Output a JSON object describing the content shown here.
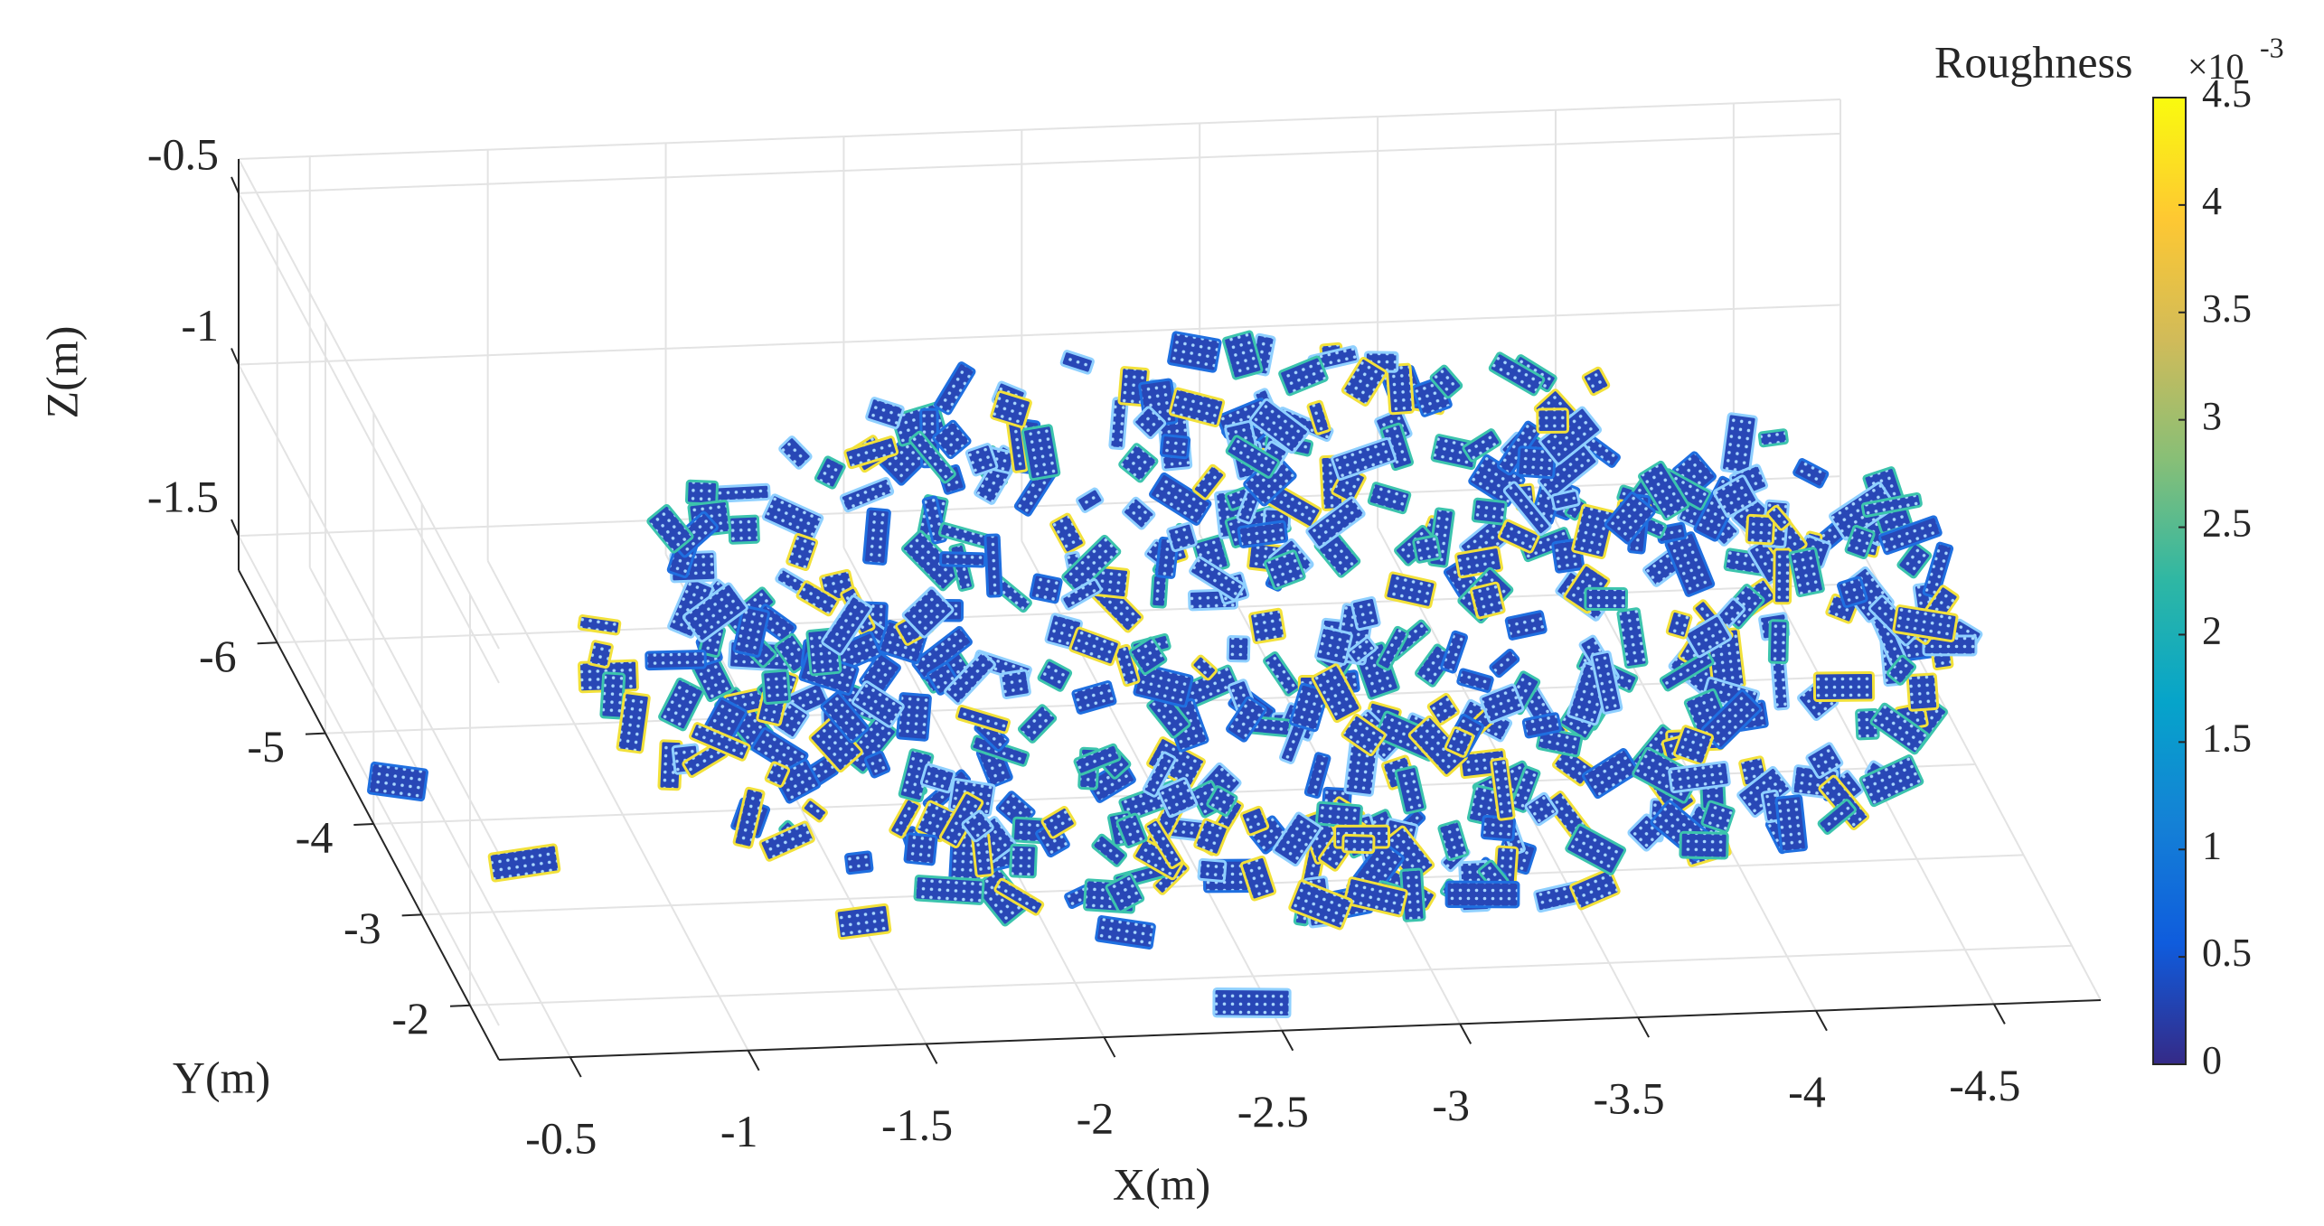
{
  "chart_data": {
    "type": "scatter3d",
    "xlabel": "X(m)",
    "ylabel": "Y(m)",
    "zlabel": "Z(m)",
    "xlim": [
      -0.3,
      -4.8
    ],
    "xticks": [
      -0.5,
      -1,
      -1.5,
      -2,
      -2.5,
      -3,
      -3.5,
      -4,
      -4.5
    ],
    "ylim": [
      -6.8,
      -1.4
    ],
    "yticks": [
      -6,
      -5,
      -4,
      -3,
      -2
    ],
    "zlim": [
      -1.6,
      -0.4
    ],
    "zticks": [
      -1.5,
      -1,
      -0.5
    ],
    "grid": true,
    "colorbar": {
      "label": "Roughness",
      "multiplier": "×10",
      "exponent": "-3",
      "lim": [
        0,
        4.5
      ],
      "ticks": [
        0,
        0.5,
        1,
        1.5,
        2,
        2.5,
        3,
        3.5,
        4,
        4.5
      ],
      "colormap": "parula"
    }
  }
}
